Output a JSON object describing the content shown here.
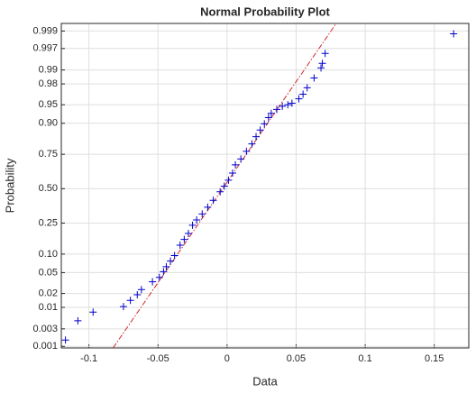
{
  "chart_data": {
    "type": "probability_plot",
    "title": "Normal Probability Plot",
    "x_label": "Data",
    "y_label": "Probability",
    "yscale": "normal",
    "xlim": [
      -0.12,
      0.175
    ],
    "xticks": [
      -0.1,
      -0.05,
      0,
      0.05,
      0.1,
      0.15
    ],
    "ylim": [
      0.0009,
      0.9994
    ],
    "yticks": [
      0.001,
      0.003,
      0.01,
      0.02,
      0.05,
      {
        "value": 0.1,
        "label": "0.10"
      },
      0.25,
      {
        "value": 0.5,
        "label": "0.50"
      },
      0.75,
      {
        "value": 0.9,
        "label": "0.90"
      },
      0.95,
      0.98,
      0.99,
      0.997,
      0.999
    ],
    "grid": true,
    "series": [
      {
        "color": "#0000cc",
        "x": [
          -0.117,
          -0.108,
          -0.097,
          -0.075,
          -0.07,
          -0.065,
          -0.062,
          -0.054,
          -0.049,
          -0.046,
          -0.044,
          -0.041,
          -0.038,
          -0.034,
          -0.031,
          -0.028,
          -0.025,
          -0.022,
          -0.018,
          -0.014,
          -0.01,
          -0.005,
          -0.002,
          0.001,
          0.004,
          0.006,
          0.01,
          0.014,
          0.018,
          0.021,
          0.024,
          0.027,
          0.03,
          0.032,
          0.036,
          0.04,
          0.044,
          0.047,
          0.052,
          0.055,
          0.058,
          0.063,
          0.068,
          0.069,
          0.071,
          0.164
        ],
        "values": [
          0.0015,
          0.0048,
          0.0078,
          0.0104,
          0.0143,
          0.0188,
          0.024,
          0.034,
          0.041,
          0.052,
          0.063,
          0.078,
          0.095,
          0.134,
          0.16,
          0.19,
          0.237,
          0.27,
          0.31,
          0.358,
          0.41,
          0.476,
          0.52,
          0.566,
          0.62,
          0.68,
          0.72,
          0.768,
          0.81,
          0.846,
          0.875,
          0.898,
          0.918,
          0.93,
          0.94,
          0.947,
          0.95,
          0.953,
          0.961,
          0.968,
          0.976,
          0.985,
          0.991,
          0.993,
          0.996,
          0.9988
        ]
      }
    ],
    "reference_line": {
      "color": "#d62728",
      "x": [
        -0.0825,
        0.079
      ],
      "values": [
        0.0009,
        0.9994
      ]
    }
  }
}
